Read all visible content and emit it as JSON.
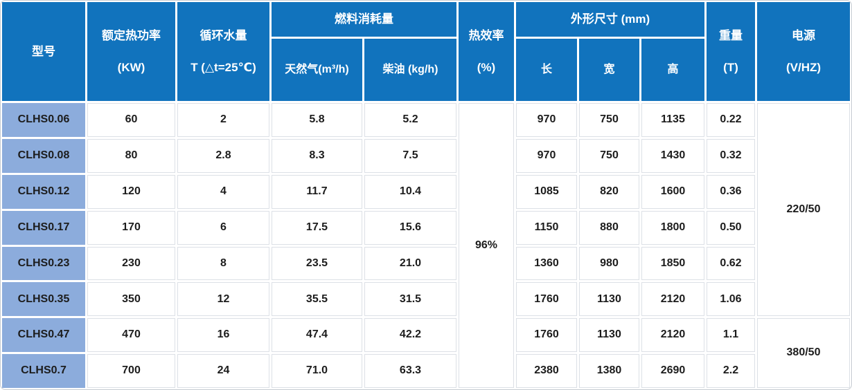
{
  "colors": {
    "header_blue": "#1173BD",
    "model_blue": "#8CACDC",
    "cell_border": "#DCE0E6",
    "text_dark": "#1C1C1C",
    "header_text": "#FFFFFF",
    "table_outline": "#C6CBD2"
  },
  "table": {
    "header": {
      "model": "型号",
      "rated_power": {
        "line1": "额定热功率",
        "line2": "(KW)"
      },
      "circulating_water": {
        "line1": "循环水量",
        "line2": "T (△t=25℃)"
      },
      "fuel_group": "燃料消耗量",
      "fuel_gas": "天然气(m³/h)",
      "fuel_diesel": "柴油 (kg/h)",
      "efficiency": {
        "line1": "热效率",
        "line2": "(%)"
      },
      "dimensions_group": "外形尺寸 (mm)",
      "dim_length": "长",
      "dim_width": "宽",
      "dim_height": "高",
      "weight": {
        "line1": "重量",
        "line2": "(T)"
      },
      "power_supply": {
        "line1": "电源",
        "line2": "(V/HZ)"
      }
    },
    "efficiency_value": "96%",
    "power_supply_values": [
      "220/50",
      "380/50"
    ],
    "rows": [
      {
        "model": "CLHS0.06",
        "rated_power": "60",
        "water": "2",
        "gas": "5.8",
        "diesel": "5.2",
        "length": "970",
        "width": "750",
        "height": "1135",
        "weight": "0.22"
      },
      {
        "model": "CLHS0.08",
        "rated_power": "80",
        "water": "2.8",
        "gas": "8.3",
        "diesel": "7.5",
        "length": "970",
        "width": "750",
        "height": "1430",
        "weight": "0.32"
      },
      {
        "model": "CLHS0.12",
        "rated_power": "120",
        "water": "4",
        "gas": "11.7",
        "diesel": "10.4",
        "length": "1085",
        "width": "820",
        "height": "1600",
        "weight": "0.36"
      },
      {
        "model": "CLHS0.17",
        "rated_power": "170",
        "water": "6",
        "gas": "17.5",
        "diesel": "15.6",
        "length": "1150",
        "width": "880",
        "height": "1800",
        "weight": "0.50"
      },
      {
        "model": "CLHS0.23",
        "rated_power": "230",
        "water": "8",
        "gas": "23.5",
        "diesel": "21.0",
        "length": "1360",
        "width": "980",
        "height": "1850",
        "weight": "0.62"
      },
      {
        "model": "CLHS0.35",
        "rated_power": "350",
        "water": "12",
        "gas": "35.5",
        "diesel": "31.5",
        "length": "1760",
        "width": "1130",
        "height": "2120",
        "weight": "1.06"
      },
      {
        "model": "CLHS0.47",
        "rated_power": "470",
        "water": "16",
        "gas": "47.4",
        "diesel": "42.2",
        "length": "1760",
        "width": "1130",
        "height": "2120",
        "weight": "1.1"
      },
      {
        "model": "CLHS0.7",
        "rated_power": "700",
        "water": "24",
        "gas": "71.0",
        "diesel": "63.3",
        "length": "2380",
        "width": "1380",
        "height": "2690",
        "weight": "2.2"
      }
    ]
  }
}
